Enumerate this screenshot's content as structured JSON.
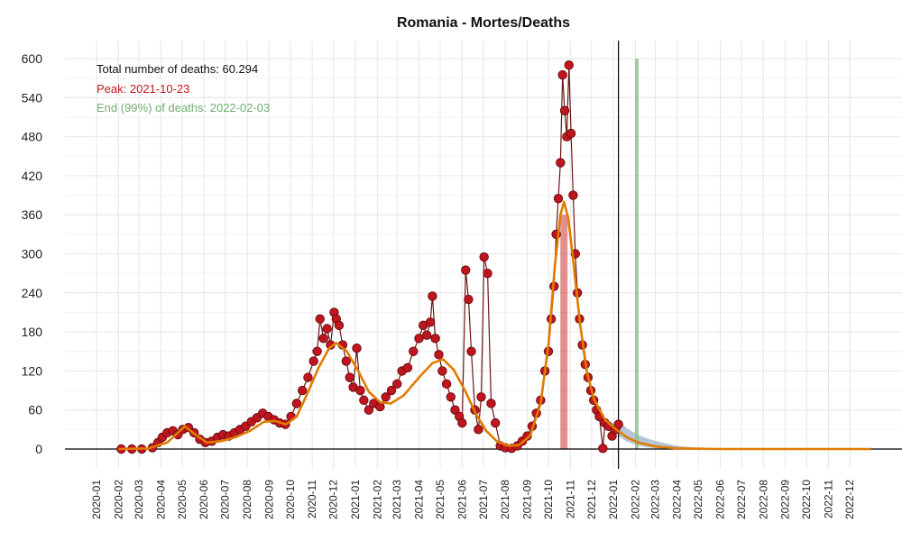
{
  "chart_data": {
    "type": "scatter",
    "title": "Romania - Mortes/Deaths",
    "xlabel": "",
    "ylabel": "",
    "ylim": [
      0,
      600
    ],
    "y_ticks": [
      0,
      60,
      120,
      180,
      240,
      300,
      360,
      420,
      480,
      540,
      600
    ],
    "x_range": [
      "2019-12-15",
      "2023-01-10"
    ],
    "x_ticks": [
      "2020-01",
      "2020-02",
      "2020-03",
      "2020-04",
      "2020-05",
      "2020-06",
      "2020-07",
      "2020-08",
      "2020-09",
      "2020-10",
      "2020-11",
      "2020-12",
      "2021-01",
      "2021-02",
      "2021-03",
      "2021-04",
      "2021-05",
      "2021-06",
      "2021-07",
      "2021-08",
      "2021-09",
      "2021-10",
      "2021-11",
      "2021-12",
      "2022-01",
      "2022-02",
      "2022-03",
      "2022-04",
      "2022-05",
      "2022-06",
      "2022-07",
      "2022-08",
      "2022-09",
      "2022-10",
      "2022-11",
      "2022-12"
    ],
    "grid": true,
    "annotations": {
      "total": "Total number of deaths: 60.294",
      "peak": "Peak: 2021-10-23",
      "end": "End (99%) of deaths: 2022-02-03"
    },
    "today_line": "2022-01-08",
    "peak_date": "2021-10-23",
    "end_date": "2022-02-03",
    "colors": {
      "points": "#c0151f",
      "point_stroke": "#5a0a0a",
      "observed_line": "#6b1515",
      "fit": "#e07b00",
      "peak_band": "#cc3333",
      "end_line": "#8fbf8f",
      "forecast_band": "#9fb3c8",
      "axis": "#000000",
      "grid": "#e6e6e6"
    },
    "series": [
      {
        "name": "",
        "type": "observed",
        "points": [
          [
            "2020-02-05",
            0
          ],
          [
            "2020-02-20",
            0
          ],
          [
            "2020-03-05",
            0
          ],
          [
            "2020-03-20",
            2
          ],
          [
            "2020-03-28",
            10
          ],
          [
            "2020-04-03",
            18
          ],
          [
            "2020-04-10",
            25
          ],
          [
            "2020-04-18",
            28
          ],
          [
            "2020-04-25",
            22
          ],
          [
            "2020-05-02",
            30
          ],
          [
            "2020-05-10",
            33
          ],
          [
            "2020-05-18",
            25
          ],
          [
            "2020-05-26",
            15
          ],
          [
            "2020-06-03",
            10
          ],
          [
            "2020-06-12",
            12
          ],
          [
            "2020-06-20",
            18
          ],
          [
            "2020-06-28",
            22
          ],
          [
            "2020-07-06",
            20
          ],
          [
            "2020-07-14",
            25
          ],
          [
            "2020-07-22",
            30
          ],
          [
            "2020-07-30",
            35
          ],
          [
            "2020-08-07",
            42
          ],
          [
            "2020-08-15",
            48
          ],
          [
            "2020-08-23",
            55
          ],
          [
            "2020-08-31",
            50
          ],
          [
            "2020-09-08",
            45
          ],
          [
            "2020-09-16",
            40
          ],
          [
            "2020-09-24",
            38
          ],
          [
            "2020-10-02",
            50
          ],
          [
            "2020-10-10",
            70
          ],
          [
            "2020-10-18",
            90
          ],
          [
            "2020-10-26",
            110
          ],
          [
            "2020-11-03",
            135
          ],
          [
            "2020-11-08",
            150
          ],
          [
            "2020-11-12",
            200
          ],
          [
            "2020-11-17",
            170
          ],
          [
            "2020-11-22",
            185
          ],
          [
            "2020-11-27",
            160
          ],
          [
            "2020-12-02",
            210
          ],
          [
            "2020-12-05",
            200
          ],
          [
            "2020-12-09",
            190
          ],
          [
            "2020-12-14",
            160
          ],
          [
            "2020-12-19",
            135
          ],
          [
            "2020-12-24",
            110
          ],
          [
            "2020-12-29",
            95
          ],
          [
            "2021-01-03",
            155
          ],
          [
            "2021-01-08",
            90
          ],
          [
            "2021-01-13",
            75
          ],
          [
            "2021-01-20",
            60
          ],
          [
            "2021-01-27",
            70
          ],
          [
            "2021-02-05",
            65
          ],
          [
            "2021-02-13",
            80
          ],
          [
            "2021-02-21",
            90
          ],
          [
            "2021-03-01",
            100
          ],
          [
            "2021-03-08",
            120
          ],
          [
            "2021-03-16",
            125
          ],
          [
            "2021-03-24",
            150
          ],
          [
            "2021-04-01",
            170
          ],
          [
            "2021-04-07",
            190
          ],
          [
            "2021-04-12",
            175
          ],
          [
            "2021-04-17",
            195
          ],
          [
            "2021-04-20",
            235
          ],
          [
            "2021-04-24",
            170
          ],
          [
            "2021-04-29",
            145
          ],
          [
            "2021-05-04",
            120
          ],
          [
            "2021-05-10",
            100
          ],
          [
            "2021-05-16",
            80
          ],
          [
            "2021-05-22",
            60
          ],
          [
            "2021-05-28",
            50
          ],
          [
            "2021-06-01",
            40
          ],
          [
            "2021-06-06",
            275
          ],
          [
            "2021-06-10",
            230
          ],
          [
            "2021-06-14",
            150
          ],
          [
            "2021-06-19",
            60
          ],
          [
            "2021-06-24",
            30
          ],
          [
            "2021-06-28",
            80
          ],
          [
            "2021-07-02",
            295
          ],
          [
            "2021-07-07",
            270
          ],
          [
            "2021-07-12",
            70
          ],
          [
            "2021-07-18",
            40
          ],
          [
            "2021-07-25",
            5
          ],
          [
            "2021-08-01",
            2
          ],
          [
            "2021-08-10",
            1
          ],
          [
            "2021-08-18",
            5
          ],
          [
            "2021-08-25",
            12
          ],
          [
            "2021-09-01",
            20
          ],
          [
            "2021-09-08",
            35
          ],
          [
            "2021-09-14",
            55
          ],
          [
            "2021-09-20",
            75
          ],
          [
            "2021-09-26",
            120
          ],
          [
            "2021-10-01",
            150
          ],
          [
            "2021-10-05",
            200
          ],
          [
            "2021-10-09",
            250
          ],
          [
            "2021-10-12",
            330
          ],
          [
            "2021-10-15",
            385
          ],
          [
            "2021-10-18",
            440
          ],
          [
            "2021-10-21",
            575
          ],
          [
            "2021-10-24",
            520
          ],
          [
            "2021-10-27",
            480
          ],
          [
            "2021-10-30",
            590
          ],
          [
            "2021-11-02",
            485
          ],
          [
            "2021-11-05",
            390
          ],
          [
            "2021-11-08",
            300
          ],
          [
            "2021-11-11",
            240
          ],
          [
            "2021-11-14",
            200
          ],
          [
            "2021-11-18",
            160
          ],
          [
            "2021-11-22",
            130
          ],
          [
            "2021-11-26",
            110
          ],
          [
            "2021-11-30",
            90
          ],
          [
            "2021-12-04",
            75
          ],
          [
            "2021-12-08",
            60
          ],
          [
            "2021-12-12",
            50
          ],
          [
            "2021-12-17",
            1
          ],
          [
            "2021-12-20",
            40
          ],
          [
            "2021-12-25",
            35
          ],
          [
            "2021-12-30",
            20
          ],
          [
            "2022-01-04",
            30
          ],
          [
            "2022-01-08",
            38
          ]
        ]
      },
      {
        "name": "",
        "type": "fit",
        "points": [
          [
            "2020-02-01",
            0
          ],
          [
            "2020-03-15",
            1
          ],
          [
            "2020-04-10",
            10
          ],
          [
            "2020-04-25",
            25
          ],
          [
            "2020-05-05",
            35
          ],
          [
            "2020-05-20",
            22
          ],
          [
            "2020-06-05",
            10
          ],
          [
            "2020-06-25",
            12
          ],
          [
            "2020-07-15",
            18
          ],
          [
            "2020-08-05",
            28
          ],
          [
            "2020-08-25",
            42
          ],
          [
            "2020-09-10",
            43
          ],
          [
            "2020-09-25",
            38
          ],
          [
            "2020-10-10",
            50
          ],
          [
            "2020-10-25",
            85
          ],
          [
            "2020-11-10",
            125
          ],
          [
            "2020-11-25",
            155
          ],
          [
            "2020-12-05",
            163
          ],
          [
            "2020-12-20",
            150
          ],
          [
            "2021-01-05",
            120
          ],
          [
            "2021-01-20",
            88
          ],
          [
            "2021-02-05",
            72
          ],
          [
            "2021-02-20",
            70
          ],
          [
            "2021-03-10",
            82
          ],
          [
            "2021-04-01",
            110
          ],
          [
            "2021-04-20",
            132
          ],
          [
            "2021-05-05",
            138
          ],
          [
            "2021-05-20",
            122
          ],
          [
            "2021-06-05",
            90
          ],
          [
            "2021-06-20",
            55
          ],
          [
            "2021-07-05",
            28
          ],
          [
            "2021-07-20",
            12
          ],
          [
            "2021-08-05",
            5
          ],
          [
            "2021-08-20",
            6
          ],
          [
            "2021-09-05",
            20
          ],
          [
            "2021-09-20",
            70
          ],
          [
            "2021-10-01",
            160
          ],
          [
            "2021-10-10",
            280
          ],
          [
            "2021-10-18",
            360
          ],
          [
            "2021-10-23",
            380
          ],
          [
            "2021-10-29",
            355
          ],
          [
            "2021-11-05",
            290
          ],
          [
            "2021-11-15",
            190
          ],
          [
            "2021-11-25",
            115
          ],
          [
            "2021-12-05",
            75
          ],
          [
            "2021-12-20",
            45
          ],
          [
            "2022-01-05",
            30
          ],
          [
            "2022-01-20",
            18
          ],
          [
            "2022-02-05",
            10
          ],
          [
            "2022-03-01",
            4
          ],
          [
            "2022-04-01",
            1
          ],
          [
            "2022-06-01",
            0
          ],
          [
            "2022-12-31",
            0
          ]
        ]
      },
      {
        "name": "",
        "type": "forecast",
        "points": [
          [
            "2022-01-08",
            30
          ],
          [
            "2022-01-20",
            20
          ],
          [
            "2022-02-05",
            12
          ],
          [
            "2022-02-20",
            8
          ],
          [
            "2022-03-10",
            5
          ],
          [
            "2022-04-01",
            2
          ],
          [
            "2022-05-01",
            1
          ],
          [
            "2022-06-01",
            0
          ]
        ]
      }
    ]
  }
}
